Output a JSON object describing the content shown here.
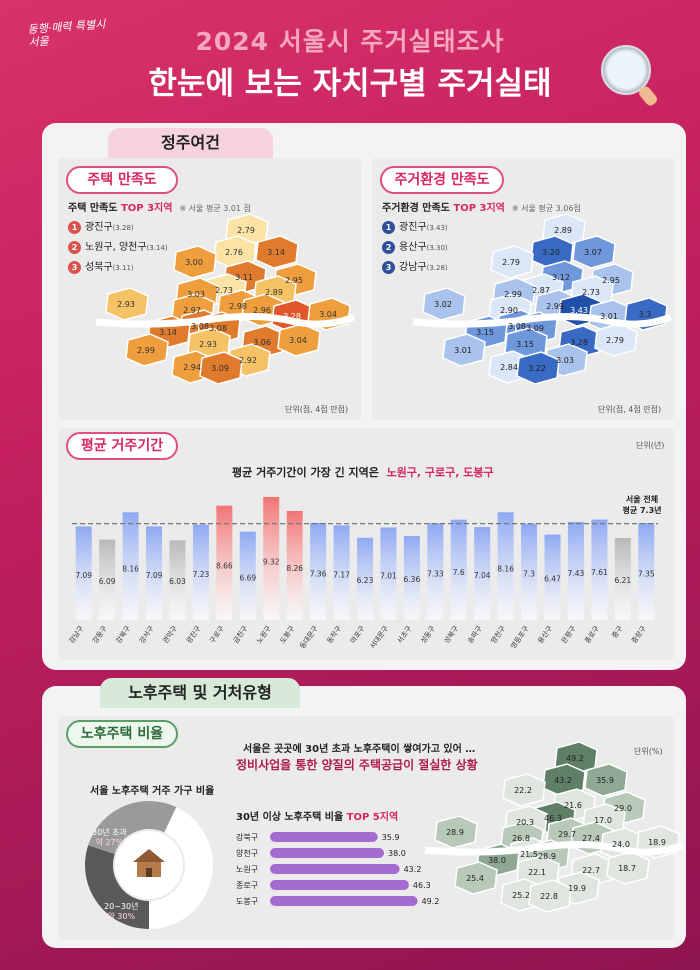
{
  "header": {
    "logo": "동행·매력 특별시 서울",
    "title_top": "2024 서울시 주거실태조사",
    "title_main": "한눈에 보는 자치구별 주거실태"
  },
  "section1": {
    "tab": "정주여건"
  },
  "housing_satisfaction": {
    "pill": "주택 만족도",
    "sub_label": "주택 만족도",
    "sub_hl": "TOP 3지역",
    "sub_note": "※ 서울 평균 3.01 점",
    "ranks": [
      {
        "n": "1",
        "name": "광진구",
        "val": "(3.28)"
      },
      {
        "n": "2",
        "name": "노원구, 양천구",
        "val": "(3.14)"
      },
      {
        "n": "3",
        "name": "성북구",
        "val": "(3.11)"
      }
    ],
    "unit": "단위(점, 4점 만점)",
    "map_values": [
      "2.79",
      "3.14",
      "2.76",
      "3.00",
      "3.11",
      "2.95",
      "2.89",
      "2.73",
      "2.93",
      "3.03",
      "2.98",
      "2.97",
      "2.96",
      "3.28",
      "3.04",
      "3.08",
      "3.14",
      "3.08",
      "2.99",
      "2.93",
      "3.06",
      "3.04",
      "2.92",
      "2.94",
      "3.09"
    ],
    "colors": {
      "rank": "#d9534f",
      "scale": [
        "#fbe3a6",
        "#f5c265",
        "#ee9e3c",
        "#e07a2c"
      ],
      "top": "#e0582c"
    }
  },
  "env_satisfaction": {
    "pill": "주거환경 만족도",
    "sub_label": "주거환경 만족도",
    "sub_hl": "TOP 3지역",
    "sub_note": "※ 서울 평균 3.06점",
    "ranks": [
      {
        "n": "1",
        "name": "광진구",
        "val": "(3.43)"
      },
      {
        "n": "2",
        "name": "용산구",
        "val": "(3.30)"
      },
      {
        "n": "3",
        "name": "강남구",
        "val": "(3.28)"
      }
    ],
    "unit": "단위(점, 4점 만점)",
    "map_values": [
      "2.89",
      "3.07",
      "3.20",
      "2.79",
      "3.12",
      "2.95",
      "2.73",
      "2.87",
      "3.02",
      "2.99",
      "2.99",
      "2.90",
      "3.43",
      "3.01",
      "3.3",
      "3.08",
      "3.15",
      "3.09",
      "3.01",
      "3.15",
      "3.28",
      "2.79",
      "3.03",
      "2.84",
      "3.22"
    ],
    "colors": {
      "rank": "#2f4f9a",
      "scale": [
        "#dbe6f7",
        "#a9c3ec",
        "#6e97dc",
        "#3a6bc4"
      ],
      "top": "#1f4fa8"
    }
  },
  "residence": {
    "pill": "평균 거주기간",
    "unit": "단위(년)",
    "caption_pre": "평균 거주기간이 가장 긴 지역은",
    "caption_hl": "노원구, 구로구, 도봉구",
    "avg_line1": "서울 전체",
    "avg_line2": "평균 7.3년"
  },
  "section2": {
    "tab": "노후주택 및 거처유형"
  },
  "old_housing": {
    "pill": "노후주택 비율",
    "note1": "서울은 곳곳에 30년 초과 노후주택이 쌓여가고 있어 …",
    "note2": "정비사업을 통한 양질의 주택공급이  절실한 상황",
    "unit": "단위(%)",
    "donut_title": "서울 노후주택 거주 가구 비율",
    "donut": [
      {
        "label": "30년 초과",
        "pct": "약 27%",
        "value": 27
      },
      {
        "label": "20~30년",
        "pct": "약 30%",
        "value": 30
      }
    ],
    "top5_pre": "30년 이상 노후주택 비율",
    "top5_hl": "TOP 5지역",
    "map_values": [
      "49.2",
      "35.9",
      "43.2",
      "22.2",
      "21.6",
      "29.0",
      "17.0",
      "46.3",
      "28.9",
      "20.3",
      "29.7",
      "26.8",
      "27.4",
      "24.0",
      "18.9",
      "21.5",
      "38.0",
      "28.9",
      "25.4",
      "22.1",
      "22.7",
      "18.7",
      "19.9",
      "25.2",
      "22.8"
    ]
  },
  "chart_data": [
    {
      "type": "bar",
      "title": "평균 거주기간",
      "ylabel": "",
      "unit": "년",
      "reference_line": {
        "label": "서울 전체 평균 7.3년",
        "value": 7.3
      },
      "categories": [
        "강남구",
        "강동구",
        "강북구",
        "강서구",
        "관악구",
        "광진구",
        "구로구",
        "금천구",
        "노원구",
        "도봉구",
        "동대문구",
        "동작구",
        "마포구",
        "서대문구",
        "서초구",
        "성동구",
        "성북구",
        "송파구",
        "양천구",
        "영등포구",
        "용산구",
        "은평구",
        "종로구",
        "중구",
        "중랑구"
      ],
      "values": [
        7.09,
        6.09,
        8.16,
        7.09,
        6.03,
        7.23,
        8.66,
        6.69,
        9.32,
        8.26,
        7.36,
        7.17,
        6.23,
        7.01,
        6.36,
        7.33,
        7.6,
        7.04,
        8.16,
        7.3,
        6.47,
        7.43,
        7.61,
        6.21,
        7.35
      ],
      "colors": {
        "normal": "#8ea8f2",
        "high": "#f27474",
        "low": "#b8b8b8"
      },
      "high_categories": [
        "구로구",
        "노원구",
        "도봉구"
      ],
      "low_categories": [
        "강동구",
        "관악구",
        "중구"
      ]
    },
    {
      "type": "bar",
      "title": "30년 이상 노후주택 비율 TOP 5지역",
      "unit": "%",
      "categories": [
        "강북구",
        "양천구",
        "노원구",
        "종로구",
        "도봉구"
      ],
      "values": [
        35.9,
        38.0,
        43.2,
        46.3,
        49.2
      ],
      "colors": {
        "bar": "#a46bd1"
      }
    },
    {
      "type": "pie",
      "title": "서울 노후주택 거주 가구 비율",
      "series": [
        {
          "name": "30년 초과",
          "value": 27
        },
        {
          "name": "20~30년",
          "value": 30
        }
      ],
      "colors": [
        "#9a9a9a",
        "#5a5a5a",
        "#ffffff"
      ]
    }
  ]
}
